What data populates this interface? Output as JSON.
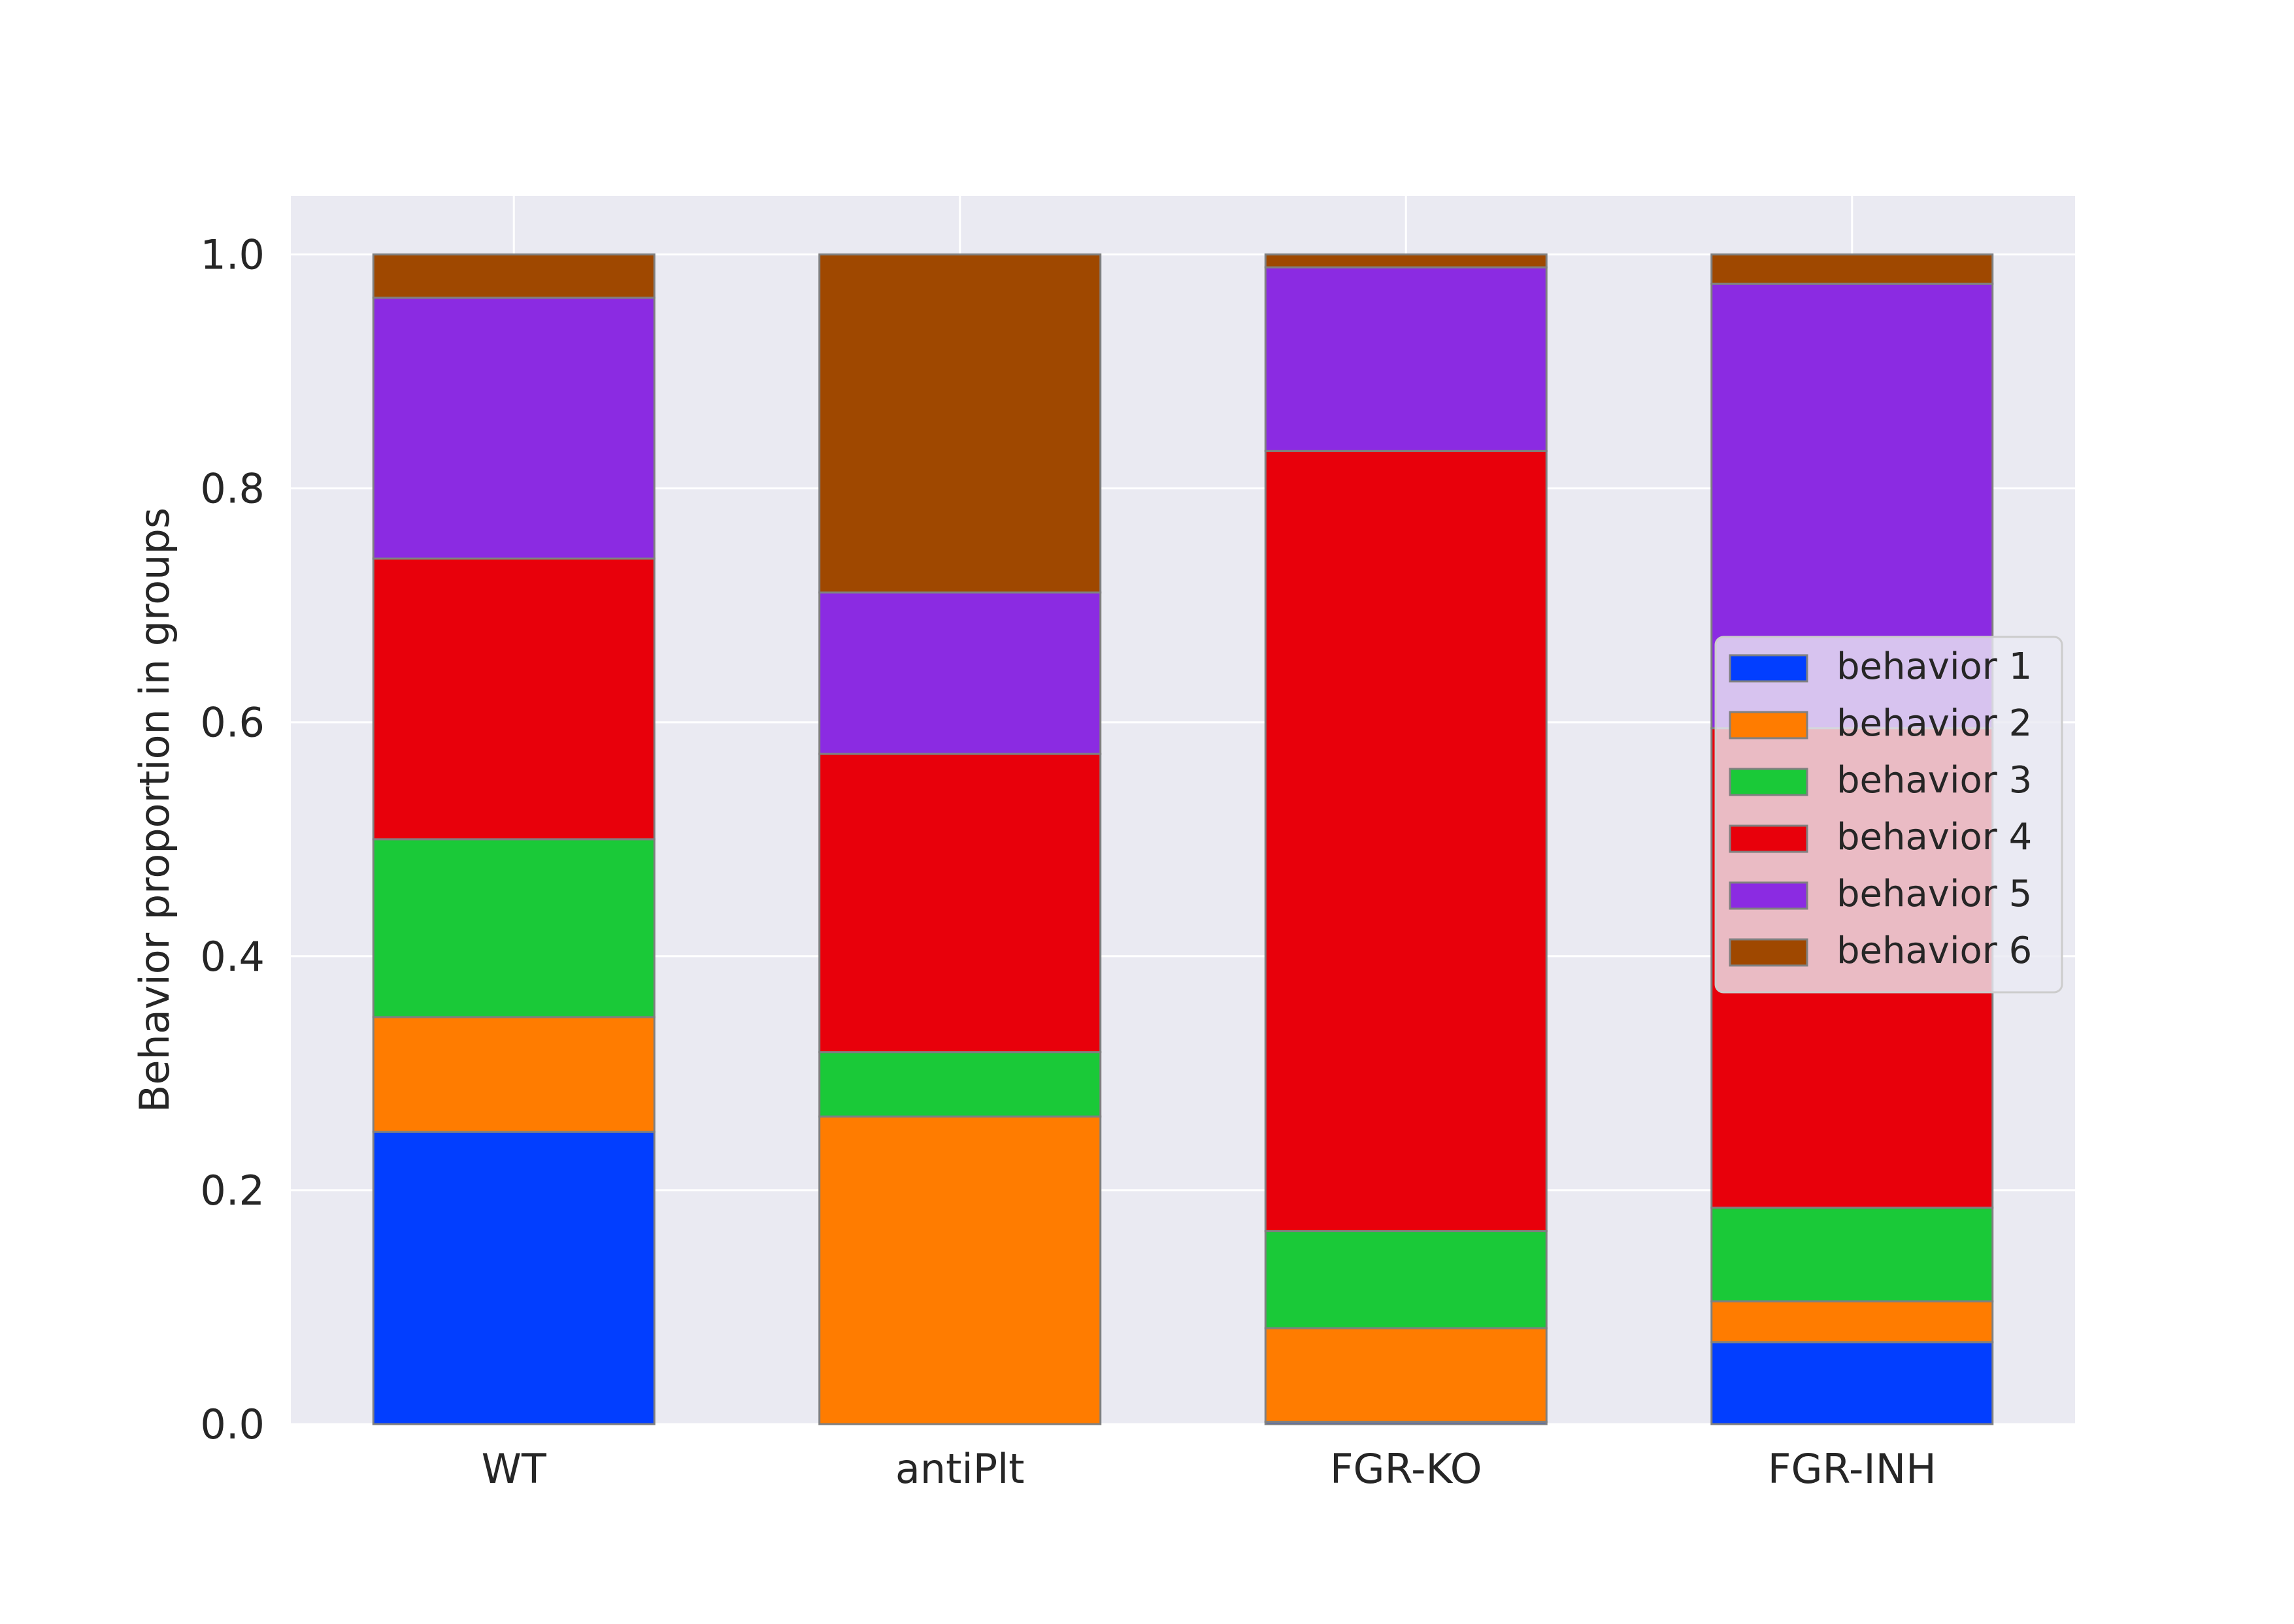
{
  "chart_data": {
    "type": "bar",
    "stacked": true,
    "title": "",
    "xlabel": "",
    "ylabel": "Behavior proportion in groups",
    "ylim": [
      0,
      1.05
    ],
    "yticks": [
      "0.0",
      "0.2",
      "0.4",
      "0.6",
      "0.8",
      "1.0"
    ],
    "grid": true,
    "legend_position": "center-right",
    "categories": [
      "WT",
      "antiPlt",
      "FGR-KO",
      "FGR-INH"
    ],
    "series": [
      {
        "name": "behavior 1",
        "color": "#023eff",
        "values": [
          0.25,
          0.0,
          0.002,
          0.07
        ]
      },
      {
        "name": "behavior 2",
        "color": "#ff7c00",
        "values": [
          0.098,
          0.263,
          0.08,
          0.035
        ]
      },
      {
        "name": "behavior 3",
        "color": "#1ac938",
        "values": [
          0.152,
          0.055,
          0.083,
          0.08
        ]
      },
      {
        "name": "behavior 4",
        "color": "#e8000b",
        "values": [
          0.24,
          0.255,
          0.667,
          0.41
        ]
      },
      {
        "name": "behavior 5",
        "color": "#8b2be2",
        "values": [
          0.223,
          0.138,
          0.157,
          0.38
        ]
      },
      {
        "name": "behavior 6",
        "color": "#9f4800",
        "values": [
          0.037,
          0.289,
          0.011,
          0.025
        ]
      }
    ]
  },
  "style": {
    "plot_background": "#eaeaf2",
    "grid_color": "#ffffff",
    "bar_edge_color": "#808080",
    "legend_background": "#eaeaf2"
  }
}
